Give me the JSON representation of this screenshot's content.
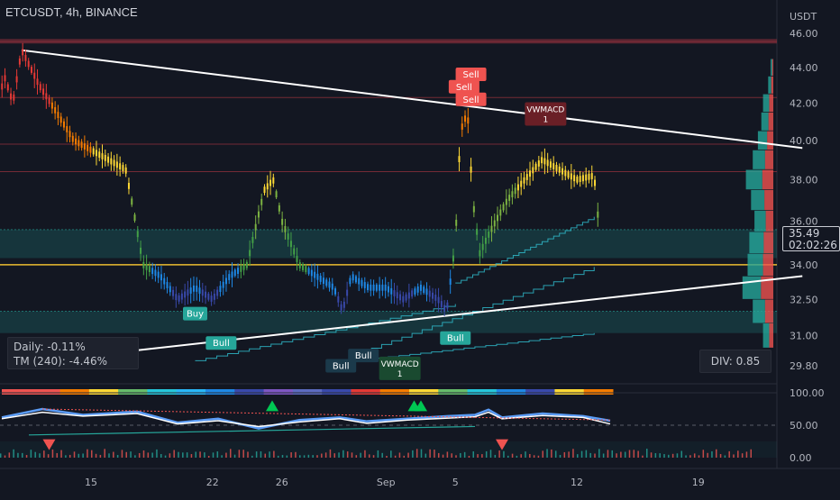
{
  "header": {
    "symbol": "ETCUSDT, 4h, BINANCE"
  },
  "info": {
    "daily": "Daily: -0.11%",
    "tm": "TM (240): -4.46%"
  },
  "div_label": "DIV: 0.85",
  "last_price": {
    "value": "35.49",
    "countdown": "02:02:26"
  },
  "axis_currency": "USDT",
  "x_ticks": [
    {
      "label": "15",
      "t": 15
    },
    {
      "label": "22",
      "t": 22
    },
    {
      "label": "26",
      "t": 26
    },
    {
      "label": "Sep",
      "t": 32
    },
    {
      "label": "5",
      "t": 36
    },
    {
      "label": "12",
      "t": 43
    },
    {
      "label": "19",
      "t": 50
    }
  ],
  "chart_data": [
    {
      "type": "line",
      "title": "ETCUSDT, 4h, BINANCE",
      "ylabel": "USDT",
      "y_ticks": [
        46.0,
        44.0,
        42.0,
        40.0,
        38.0,
        36.0,
        34.0,
        32.5,
        31.0,
        29.8
      ],
      "ylim": [
        29.0,
        46.4
      ],
      "scale": "log",
      "price_path": [
        [
          8,
          36.5
        ],
        [
          9,
          39.0
        ],
        [
          10,
          43.5
        ],
        [
          10.5,
          42.0
        ],
        [
          11,
          45.0
        ],
        [
          12,
          43.0
        ],
        [
          13,
          41.5
        ],
        [
          14,
          40.0
        ],
        [
          15,
          39.5
        ],
        [
          16,
          39.0
        ],
        [
          17,
          38.5
        ],
        [
          18,
          34.0
        ],
        [
          19,
          33.5
        ],
        [
          20,
          32.5
        ],
        [
          21,
          33.0
        ],
        [
          22,
          32.5
        ],
        [
          23,
          33.5
        ],
        [
          24,
          34.0
        ],
        [
          25,
          37.5
        ],
        [
          25.5,
          38.0
        ],
        [
          26,
          36.0
        ],
        [
          27,
          34.0
        ],
        [
          28,
          33.5
        ],
        [
          29,
          33.0
        ],
        [
          29.5,
          32.0
        ],
        [
          30,
          33.5
        ],
        [
          31,
          33.0
        ],
        [
          32,
          33.0
        ],
        [
          33,
          32.5
        ],
        [
          34,
          33.0
        ],
        [
          35,
          32.5
        ],
        [
          35.5,
          32.0
        ],
        [
          36,
          35.0
        ],
        [
          36.3,
          40.5
        ],
        [
          36.7,
          41.5
        ],
        [
          37,
          37.0
        ],
        [
          37.4,
          34.5
        ],
        [
          38,
          35.5
        ],
        [
          39,
          37.0
        ],
        [
          40,
          38.0
        ],
        [
          41,
          39.0
        ],
        [
          42,
          38.5
        ],
        [
          43,
          38.0
        ],
        [
          44,
          38.2
        ],
        [
          44.3,
          35.49
        ]
      ],
      "price_levels": [
        45.5,
        42.3,
        39.8,
        38.4,
        34.0
      ],
      "zones": [
        [
          34.3,
          35.6
        ],
        [
          31.1,
          32.0
        ]
      ],
      "trendlines": [
        {
          "from": [
            11,
            45.0
          ],
          "to": [
            56,
            39.6
          ]
        },
        {
          "from": [
            11,
            29.9
          ],
          "to": [
            56,
            33.5
          ]
        }
      ],
      "signals": [
        {
          "label": "Buy",
          "t": 21.0,
          "price": 31.9,
          "kind": "buy"
        },
        {
          "label": "Bull",
          "t": 22.5,
          "price": 30.7,
          "kind": "bull"
        },
        {
          "label": "Bull",
          "t": 29.4,
          "price": 29.8,
          "kind": "bull-dark"
        },
        {
          "label": "Bull",
          "t": 30.7,
          "price": 30.2,
          "kind": "bull-dark"
        },
        {
          "label": "VWMACD\n1",
          "t": 32.8,
          "price": 29.7,
          "kind": "vwmacd-bull"
        },
        {
          "label": "Bull",
          "t": 36.0,
          "price": 30.9,
          "kind": "bull"
        },
        {
          "label": "Sell",
          "t": 36.9,
          "price": 43.6,
          "kind": "sell"
        },
        {
          "label": "Sell",
          "t": 36.5,
          "price": 42.9,
          "kind": "sell"
        },
        {
          "label": "Sell",
          "t": 36.9,
          "price": 42.2,
          "kind": "sell"
        },
        {
          "label": "VWMACD\n1",
          "t": 41.2,
          "price": 41.4,
          "kind": "vwmacd-bear"
        }
      ],
      "volume_profile_levels": [
        {
          "price": 44.0,
          "size": 0.08
        },
        {
          "price": 43.0,
          "size": 0.15
        },
        {
          "price": 42.0,
          "size": 0.3
        },
        {
          "price": 41.0,
          "size": 0.35
        },
        {
          "price": 40.0,
          "size": 0.45
        },
        {
          "price": 39.0,
          "size": 0.6
        },
        {
          "price": 38.0,
          "size": 0.8
        },
        {
          "price": 37.0,
          "size": 0.65
        },
        {
          "price": 36.0,
          "size": 0.55
        },
        {
          "price": 35.0,
          "size": 0.7
        },
        {
          "price": 34.0,
          "size": 0.75
        },
        {
          "price": 33.0,
          "size": 0.9
        },
        {
          "price": 32.0,
          "size": 0.6
        },
        {
          "price": 31.0,
          "size": 0.3
        }
      ]
    },
    {
      "type": "line",
      "title": "",
      "y_ticks": [
        100.0,
        50.0,
        0.0
      ],
      "ylim": [
        -5,
        105
      ],
      "series": [
        {
          "values_path": [
            [
              0,
              62
            ],
            [
              3,
              75
            ],
            [
              6,
              66
            ],
            [
              10,
              71
            ],
            [
              13,
              54
            ],
            [
              16,
              60
            ],
            [
              19,
              45
            ],
            [
              22,
              58
            ],
            [
              25,
              62
            ],
            [
              27,
              56
            ],
            [
              30,
              60
            ],
            [
              33,
              64
            ],
            [
              35,
              66
            ],
            [
              36,
              74
            ],
            [
              37,
              62
            ],
            [
              40,
              68
            ],
            [
              43,
              64
            ],
            [
              45,
              57
            ]
          ]
        },
        {
          "values_path": [
            [
              0,
              60
            ],
            [
              3,
              70
            ],
            [
              6,
              64
            ],
            [
              10,
              68
            ],
            [
              13,
              52
            ],
            [
              16,
              57
            ],
            [
              19,
              48
            ],
            [
              22,
              55
            ],
            [
              25,
              60
            ],
            [
              27,
              53
            ],
            [
              30,
              58
            ],
            [
              33,
              61
            ],
            [
              35,
              63
            ],
            [
              36,
              70
            ],
            [
              37,
              60
            ],
            [
              40,
              65
            ],
            [
              43,
              62
            ],
            [
              45,
              52
            ]
          ]
        }
      ],
      "signals": [
        {
          "t": 20.0,
          "value": 80,
          "kind": "up"
        },
        {
          "t": 30.5,
          "value": 80,
          "kind": "up"
        },
        {
          "t": 31.0,
          "value": 80,
          "kind": "up"
        },
        {
          "t": 37.0,
          "value": 20,
          "kind": "down"
        },
        {
          "t": 3.5,
          "value": 20,
          "kind": "down"
        }
      ]
    }
  ],
  "colors": {
    "background": "#131722",
    "bull": "#26a69a",
    "bear": "#ef5350",
    "level": "#f7c531",
    "trendline": "#ffffff",
    "step_line": "#2fb9c9"
  }
}
